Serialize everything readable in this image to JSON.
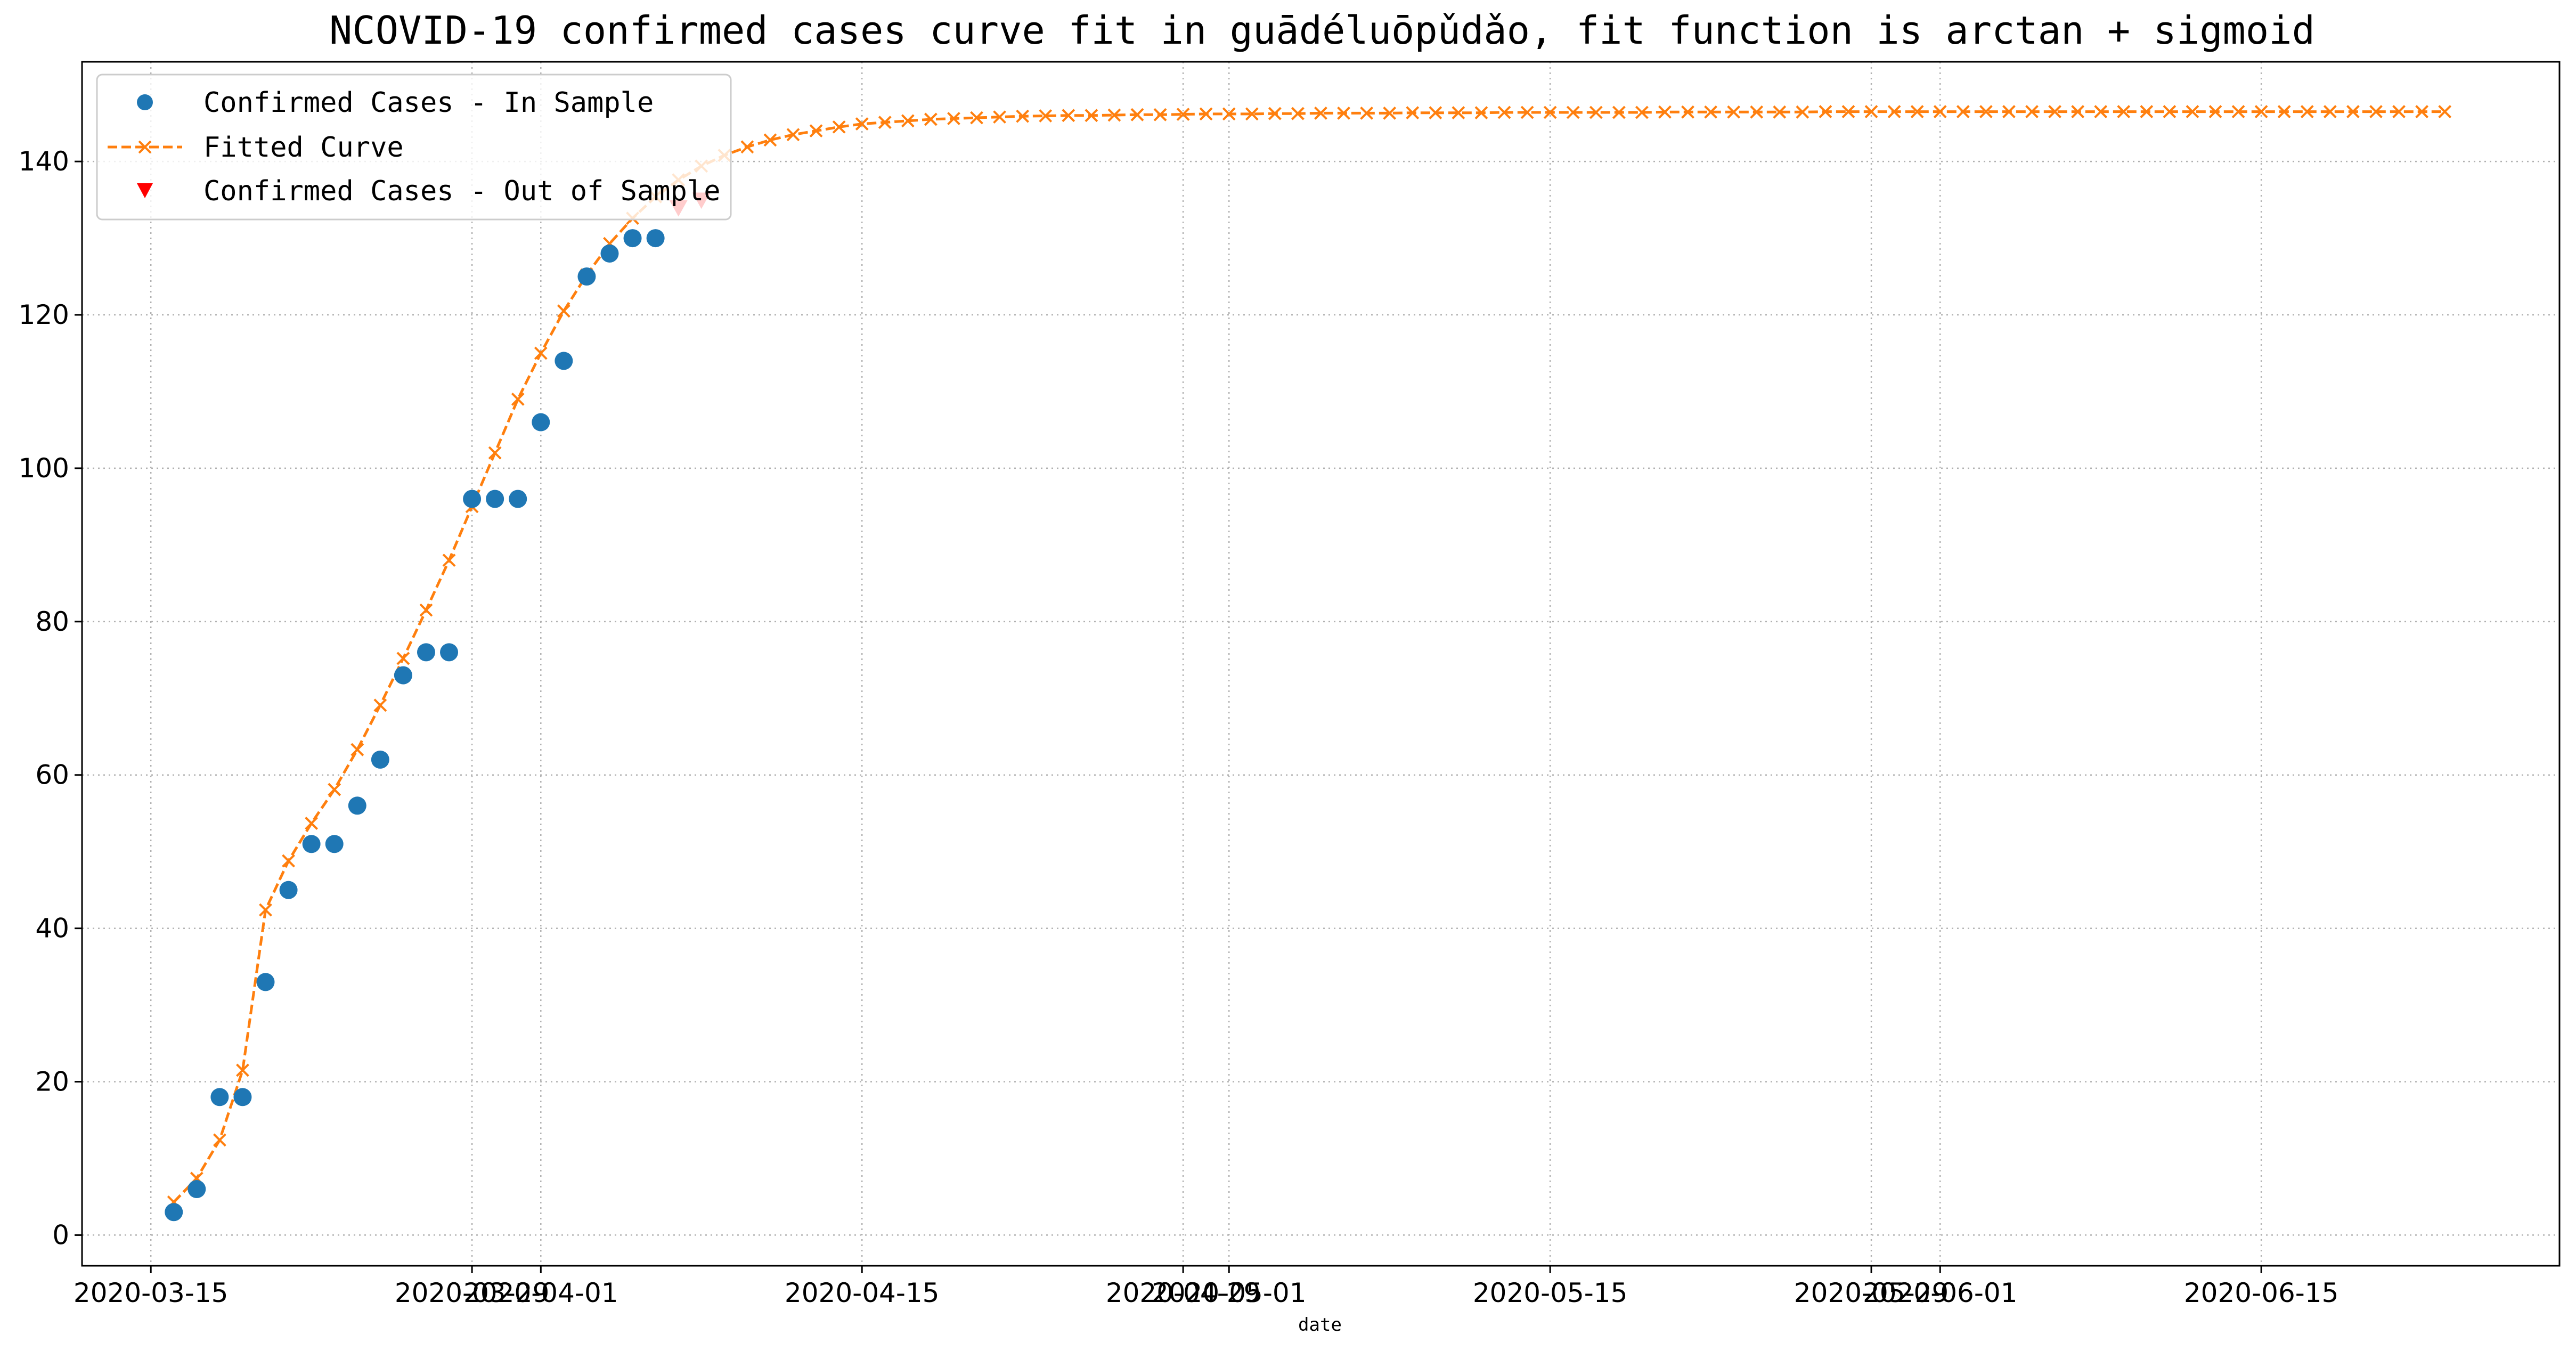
{
  "chart_data": {
    "type": "line",
    "title": "NCOVID-19 confirmed cases curve fit in guādéluōpǔdǎo, fit function is arctan + sigmoid",
    "xlabel": "date",
    "ylabel": "",
    "x_start": "2020-03-16",
    "x_range": [
      "2020-03-12",
      "2020-06-28"
    ],
    "ylim": [
      -4,
      153
    ],
    "grid": true,
    "legend_position": "top-left",
    "x_ticks": [
      "2020-03-15",
      "2020-03-29",
      "2020-04-01",
      "2020-04-15",
      "2020-04-29",
      "2020-05-01",
      "2020-05-15",
      "2020-05-29",
      "2020-06-01",
      "2020-06-15"
    ],
    "y_ticks": [
      0,
      20,
      40,
      60,
      80,
      100,
      120,
      140
    ],
    "series": [
      {
        "name": "Confirmed Cases - In Sample",
        "style": "scatter-circle",
        "color": "#1f77b4",
        "start_date": "2020-03-16",
        "values": [
          3,
          6,
          18,
          18,
          33,
          45,
          51,
          51,
          56,
          62,
          73,
          76,
          76,
          96,
          96,
          96,
          106,
          114,
          125,
          128,
          130,
          130
        ]
      },
      {
        "name": "Fitted Curve",
        "style": "dashed-line-x",
        "color": "#ff7f0e",
        "start_date": "2020-03-16",
        "values": [
          4.3,
          7.4,
          12.4,
          21.5,
          42.4,
          48.8,
          53.7,
          58.1,
          63.3,
          69.1,
          75.2,
          81.5,
          88.0,
          95.0,
          102.0,
          109.0,
          115.0,
          120.5,
          125.2,
          129.3,
          132.6,
          135.4,
          137.6,
          139.4,
          140.8,
          141.9,
          142.8,
          143.5,
          144.0,
          144.5,
          144.9,
          145.1,
          145.3,
          145.5,
          145.6,
          145.7,
          145.8,
          145.9,
          145.95,
          146.0,
          146.0,
          146.05,
          146.1,
          146.1,
          146.15,
          146.2,
          146.2,
          146.2,
          146.25,
          146.25,
          146.3,
          146.3,
          146.3,
          146.3,
          146.35,
          146.35,
          146.35,
          146.35,
          146.4,
          146.4,
          146.4,
          146.4,
          146.4,
          146.4,
          146.4,
          146.45,
          146.45,
          146.45,
          146.45,
          146.45,
          146.45,
          146.45,
          146.5,
          146.5,
          146.5,
          146.5,
          146.5,
          146.5,
          146.5,
          146.5,
          146.5,
          146.5,
          146.5,
          146.5,
          146.5,
          146.5,
          146.5,
          146.5,
          146.5,
          146.5,
          146.5,
          146.5,
          146.5,
          146.5,
          146.5,
          146.5,
          146.5,
          146.5,
          146.5,
          146.5
        ]
      },
      {
        "name": "Confirmed Cases - Out of Sample",
        "style": "scatter-triangle-down",
        "color": "#ff0000",
        "start_date": "2020-04-07",
        "values": [
          134,
          135
        ]
      }
    ]
  }
}
